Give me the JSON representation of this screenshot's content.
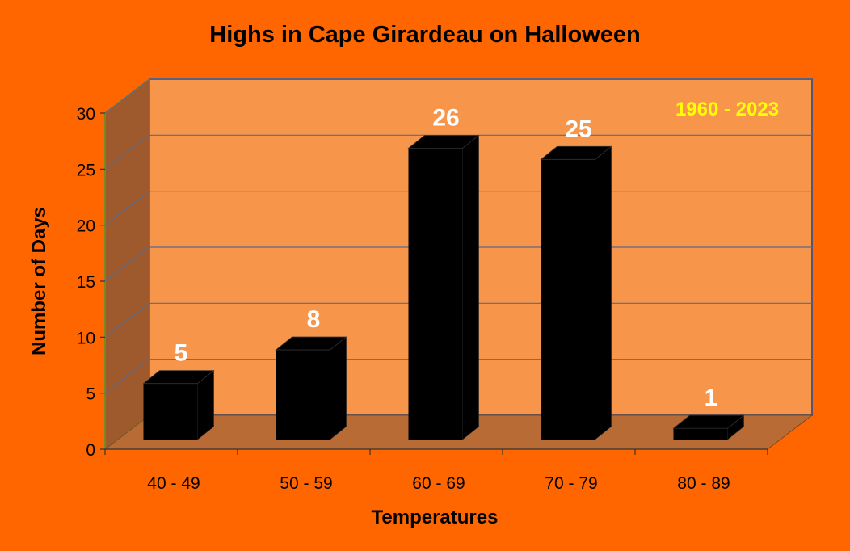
{
  "colors": {
    "background": "#FF6600",
    "back_wall": "#F7964B",
    "side_wall": "#9E5A2C",
    "floor": "#B86B35",
    "grid": "#5A6A8A",
    "bar": "#000000",
    "data_label": "#FFFFFF",
    "period_label": "#FFFF00",
    "axis_text": "#000000"
  },
  "chart_data": {
    "type": "bar",
    "style": "3d-column",
    "title": "Highs in Cape Girardeau on Halloween",
    "annotation": "1960 - 2023",
    "xlabel": "Temperatures",
    "ylabel": "Number of Days",
    "categories": [
      "40 - 49",
      "50 - 59",
      "60 - 69",
      "70 - 79",
      "80 - 89"
    ],
    "values": [
      5,
      8,
      26,
      25,
      1
    ],
    "data_labels": [
      "5",
      "8",
      "26",
      "25",
      "1"
    ],
    "ylim": [
      0,
      30
    ],
    "yticks": [
      0,
      5,
      10,
      15,
      20,
      25,
      30
    ],
    "grid": true,
    "legend": "none"
  }
}
